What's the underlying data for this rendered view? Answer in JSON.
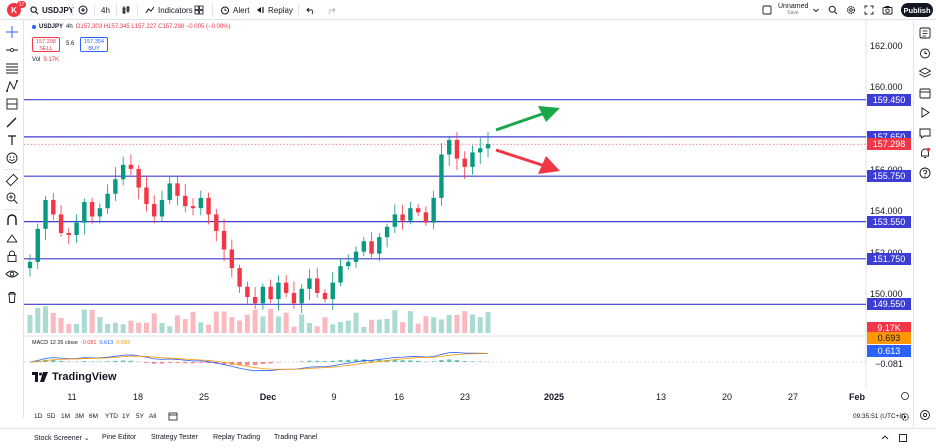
{
  "header": {
    "logo_letter": "K",
    "notification_count": "17",
    "symbol": "USDJPY",
    "interval": "4h",
    "indicators_label": "Indicators",
    "alert_label": "Alert",
    "replay_label": "Replay",
    "layout_name": "Unnamed",
    "layout_status": "Save",
    "publish_label": "Publish"
  },
  "legend": {
    "ohlc": "O157.303 H157.345 L157.227 C157.298 −0.005 (−0.00%)",
    "sell_price": "157.298",
    "sell_label": "SELL",
    "buy_price": "157.354",
    "buy_label": "BUY",
    "spread": "5.6",
    "vol_label": "Vol",
    "vol_value": "9.17K",
    "macd_label": "MACD 12 26 close",
    "macd_values": [
      "-0.081",
      "0.613",
      "0.693"
    ]
  },
  "price_axis": {
    "ticks": [
      "162.000",
      "160.000",
      "156.000",
      "154.000",
      "152.000",
      "150.000"
    ],
    "levels": [
      {
        "value": "159.450",
        "color": "#3d3dd6"
      },
      {
        "value": "157.650",
        "color": "#3d3dd6"
      },
      {
        "value": "155.750",
        "color": "#3d3dd6"
      },
      {
        "value": "153.550",
        "color": "#3d3dd6"
      },
      {
        "value": "151.750",
        "color": "#3d3dd6"
      },
      {
        "value": "149.550",
        "color": "#3d3dd6"
      }
    ],
    "current_price": "157.298",
    "current_color": "#f23645",
    "vol_badge": "9.17K",
    "macd_badges": [
      {
        "value": "0.693",
        "color": "#ff9800"
      },
      {
        "value": "0.613",
        "color": "#2962ff"
      },
      {
        "value": "−0.081",
        "color": "#ffffff"
      }
    ]
  },
  "time_axis": {
    "ticks": [
      {
        "label": "11",
        "bold": false
      },
      {
        "label": "18",
        "bold": false
      },
      {
        "label": "25",
        "bold": false
      },
      {
        "label": "Dec",
        "bold": true
      },
      {
        "label": "9",
        "bold": false
      },
      {
        "label": "16",
        "bold": false
      },
      {
        "label": "23",
        "bold": false
      },
      {
        "label": "2025",
        "bold": true
      },
      {
        "label": "13",
        "bold": false
      },
      {
        "label": "20",
        "bold": false
      },
      {
        "label": "27",
        "bold": false
      },
      {
        "label": "Feb",
        "bold": true
      }
    ]
  },
  "branding": {
    "name": "TradingView"
  },
  "ranges": [
    "1D",
    "5D",
    "1M",
    "3M",
    "6M",
    "YTD",
    "1Y",
    "5Y",
    "All"
  ],
  "clock": "09:35:51 (UTC+8)",
  "bottom_tabs": [
    "Stock Screener",
    "Pine Editor",
    "Strategy Tester",
    "Replay Trading",
    "Trading Panel"
  ],
  "colors": {
    "up": "#089981",
    "down": "#f23645",
    "level_line": "#3d3dd6",
    "arrow_up": "#18a84a",
    "arrow_down": "#f23645"
  },
  "chart_data": {
    "type": "candlestick",
    "symbol": "USDJPY",
    "interval": "4h",
    "approx_closes": [
      151.6,
      153.2,
      154.6,
      153.9,
      153.0,
      152.9,
      153.5,
      154.5,
      153.8,
      154.2,
      154.9,
      155.6,
      156.3,
      156.1,
      155.2,
      154.4,
      153.8,
      154.6,
      155.4,
      154.8,
      154.3,
      154.2,
      154.7,
      153.9,
      153.1,
      152.2,
      151.3,
      150.4,
      149.9,
      149.6,
      150.4,
      149.8,
      150.6,
      150.1,
      149.6,
      150.3,
      150.8,
      150.1,
      149.8,
      150.6,
      151.4,
      151.6,
      152.1,
      152.6,
      152.0,
      152.8,
      153.3,
      153.9,
      153.6,
      154.2,
      154.0,
      153.5,
      154.7,
      156.8,
      157.5,
      156.6,
      156.2,
      156.9,
      157.1,
      157.3
    ],
    "levels": [
      159.45,
      157.65,
      155.75,
      153.55,
      151.75,
      149.55
    ],
    "current": 157.298,
    "macd": {
      "macd": 0.613,
      "signal": 0.693,
      "histogram": -0.081
    }
  }
}
